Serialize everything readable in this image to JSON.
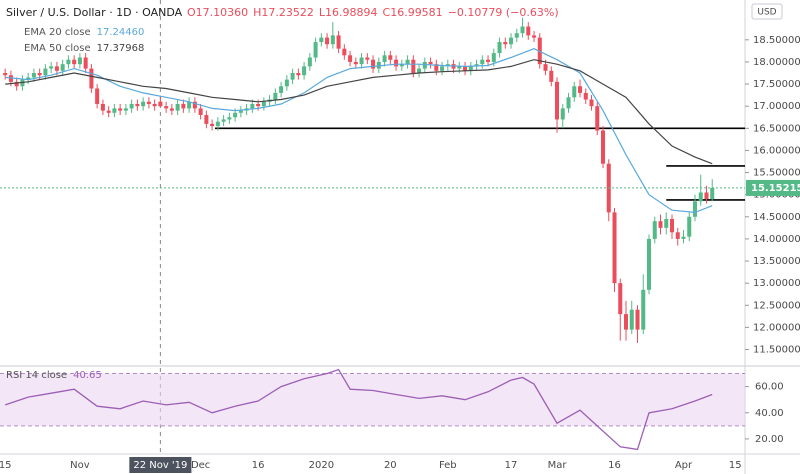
{
  "chart_data": {
    "type": "candlestick",
    "title": "Silver / U.S. Dollar · 1D · OANDA",
    "ohlc": [
      "O17.10360",
      "H17.23522",
      "L16.98894",
      "C16.99581"
    ],
    "change": "−0.10779 (−0.63%)",
    "currency": "USD",
    "up_color": "#53b987",
    "down_color": "#eb4d5c",
    "xlim": [
      -0.9,
      128.7
    ],
    "xticks": [
      {
        "value": 0,
        "label": "15"
      },
      {
        "value": 13,
        "label": "Nov"
      },
      {
        "value": 27,
        "label": "22 Nov '19"
      },
      {
        "value": 34,
        "label": "Dec"
      },
      {
        "value": 44,
        "label": "16"
      },
      {
        "value": 55,
        "label": "2020"
      },
      {
        "value": 67,
        "label": "20"
      },
      {
        "value": 77,
        "label": "Feb"
      },
      {
        "value": 88,
        "label": "17"
      },
      {
        "value": 96,
        "label": "Mar"
      },
      {
        "value": 106,
        "label": "16"
      },
      {
        "value": 118,
        "label": "Apr"
      },
      {
        "value": 127,
        "label": "15"
      }
    ],
    "crosshair": 27,
    "ylim": [
      11.15,
      19.4
    ],
    "yticks": [
      {
        "value": 11.5,
        "label": "11.50000"
      },
      {
        "value": 12,
        "label": "12.00000"
      },
      {
        "value": 12.5,
        "label": "12.50000"
      },
      {
        "value": 13,
        "label": "13.00000"
      },
      {
        "value": 13.5,
        "label": "13.50000"
      },
      {
        "value": 14,
        "label": "14.00000"
      },
      {
        "value": 14.5,
        "label": "14.50000"
      },
      {
        "value": 15,
        "label": "15.00000"
      },
      {
        "value": 15.5,
        "label": "15.50000"
      },
      {
        "value": 16,
        "label": "16.00000"
      },
      {
        "value": 16.5,
        "label": "16.50000"
      },
      {
        "value": 17,
        "label": "17.00000"
      },
      {
        "value": 17.5,
        "label": "17.50000"
      },
      {
        "value": 18,
        "label": "18.00000"
      },
      {
        "value": 18.5,
        "label": "18.50000"
      }
    ],
    "candles": [
      [
        17.75,
        17.85,
        17.6,
        17.7
      ],
      [
        17.7,
        17.8,
        17.45,
        17.55
      ],
      [
        17.55,
        17.65,
        17.35,
        17.45
      ],
      [
        17.45,
        17.7,
        17.35,
        17.6
      ],
      [
        17.6,
        17.75,
        17.5,
        17.65
      ],
      [
        17.65,
        17.85,
        17.55,
        17.75
      ],
      [
        17.75,
        17.85,
        17.6,
        17.7
      ],
      [
        17.7,
        17.95,
        17.6,
        17.85
      ],
      [
        17.85,
        18,
        17.75,
        17.9
      ],
      [
        17.9,
        18,
        17.7,
        17.8
      ],
      [
        17.8,
        18.05,
        17.7,
        17.95
      ],
      [
        17.95,
        18.15,
        17.85,
        18.05
      ],
      [
        18.05,
        18.15,
        17.85,
        17.95
      ],
      [
        17.95,
        18.2,
        17.85,
        18.1
      ],
      [
        18.1,
        18.2,
        17.75,
        17.85
      ],
      [
        17.85,
        17.95,
        17.3,
        17.4
      ],
      [
        17.4,
        17.5,
        16.95,
        17.05
      ],
      [
        17.05,
        17.15,
        16.8,
        16.9
      ],
      [
        16.9,
        17,
        16.75,
        16.85
      ],
      [
        16.85,
        17.05,
        16.75,
        16.95
      ],
      [
        16.95,
        17.05,
        16.8,
        16.9
      ],
      [
        16.9,
        17.05,
        16.8,
        16.95
      ],
      [
        16.95,
        17.15,
        16.85,
        17.05
      ],
      [
        17.05,
        17.15,
        16.9,
        17
      ],
      [
        17,
        17.2,
        16.9,
        17.1
      ],
      [
        17.1,
        17.2,
        16.95,
        17.05
      ],
      [
        17.05,
        17.15,
        16.9,
        17
      ],
      [
        17.1036,
        17.23522,
        16.98894,
        16.99581
      ],
      [
        17,
        17.1,
        16.85,
        16.95
      ],
      [
        16.95,
        17.05,
        16.8,
        16.9
      ],
      [
        16.9,
        17.15,
        16.8,
        17.05
      ],
      [
        17.05,
        17.15,
        16.85,
        16.95
      ],
      [
        16.95,
        17.2,
        16.85,
        17.1
      ],
      [
        17.1,
        17.2,
        16.85,
        16.95
      ],
      [
        16.95,
        17.05,
        16.7,
        16.8
      ],
      [
        16.8,
        16.9,
        16.5,
        16.6
      ],
      [
        16.6,
        16.7,
        16.45,
        16.55
      ],
      [
        16.55,
        16.75,
        16.45,
        16.65
      ],
      [
        16.65,
        16.8,
        16.55,
        16.7
      ],
      [
        16.7,
        16.85,
        16.6,
        16.75
      ],
      [
        16.75,
        16.95,
        16.65,
        16.85
      ],
      [
        16.85,
        17,
        16.75,
        16.9
      ],
      [
        16.9,
        17.05,
        16.8,
        16.95
      ],
      [
        16.95,
        17.15,
        16.85,
        17.05
      ],
      [
        17.05,
        17.15,
        16.9,
        17
      ],
      [
        17,
        17.2,
        16.9,
        17.1
      ],
      [
        17.1,
        17.25,
        17,
        17.15
      ],
      [
        17.15,
        17.4,
        17.05,
        17.3
      ],
      [
        17.3,
        17.55,
        17.2,
        17.45
      ],
      [
        17.45,
        17.7,
        17.35,
        17.6
      ],
      [
        17.6,
        17.85,
        17.5,
        17.75
      ],
      [
        17.75,
        17.85,
        17.6,
        17.7
      ],
      [
        17.7,
        18,
        17.6,
        17.9
      ],
      [
        17.9,
        18.2,
        17.8,
        18.1
      ],
      [
        18.1,
        18.55,
        18,
        18.45
      ],
      [
        18.45,
        18.65,
        18.35,
        18.55
      ],
      [
        18.55,
        18.65,
        18.3,
        18.4
      ],
      [
        18.4,
        18.9,
        18.3,
        18.6
      ],
      [
        18.6,
        18.7,
        18.2,
        18.3
      ],
      [
        18.3,
        18.4,
        18.05,
        18.15
      ],
      [
        18.15,
        18.25,
        17.9,
        18
      ],
      [
        18,
        18.1,
        17.85,
        17.95
      ],
      [
        17.95,
        18.2,
        17.85,
        18.1
      ],
      [
        18.1,
        18.2,
        17.95,
        18.05
      ],
      [
        18.05,
        18.15,
        17.75,
        17.85
      ],
      [
        17.85,
        18.1,
        17.75,
        18
      ],
      [
        18,
        18.25,
        17.9,
        18.15
      ],
      [
        18.15,
        18.25,
        17.95,
        18.05
      ],
      [
        18.05,
        18.15,
        17.8,
        17.9
      ],
      [
        17.9,
        18.05,
        17.8,
        17.95
      ],
      [
        17.95,
        18.15,
        17.85,
        18.05
      ],
      [
        18.05,
        18.15,
        17.65,
        17.75
      ],
      [
        17.75,
        17.95,
        17.65,
        17.85
      ],
      [
        17.85,
        18.1,
        17.75,
        18
      ],
      [
        18,
        18.1,
        17.85,
        17.95
      ],
      [
        17.95,
        18.05,
        17.7,
        17.8
      ],
      [
        17.8,
        18,
        17.7,
        17.9
      ],
      [
        17.9,
        18.05,
        17.8,
        17.95
      ],
      [
        17.95,
        18.05,
        17.75,
        17.85
      ],
      [
        17.85,
        18,
        17.75,
        17.9
      ],
      [
        17.9,
        18,
        17.7,
        17.8
      ],
      [
        17.8,
        18,
        17.7,
        17.9
      ],
      [
        17.9,
        18.05,
        17.8,
        17.95
      ],
      [
        17.95,
        18.15,
        17.85,
        18.05
      ],
      [
        18.05,
        18.15,
        17.9,
        18
      ],
      [
        18,
        18.3,
        17.9,
        18.2
      ],
      [
        18.2,
        18.55,
        18.1,
        18.45
      ],
      [
        18.45,
        18.55,
        18.3,
        18.4
      ],
      [
        18.4,
        18.65,
        18.3,
        18.55
      ],
      [
        18.55,
        18.75,
        18.45,
        18.65
      ],
      [
        18.65,
        19,
        18.55,
        18.8
      ],
      [
        18.8,
        18.9,
        18.5,
        18.6
      ],
      [
        18.6,
        18.7,
        18.45,
        18.55
      ],
      [
        18.55,
        18.65,
        17.85,
        17.95
      ],
      [
        17.95,
        18.05,
        17.7,
        17.8
      ],
      [
        17.8,
        17.9,
        17.45,
        17.55
      ],
      [
        17.55,
        17.65,
        16.4,
        16.7
      ],
      [
        16.7,
        17.05,
        16.5,
        16.95
      ],
      [
        16.95,
        17.3,
        16.85,
        17.2
      ],
      [
        17.2,
        17.55,
        17.1,
        17.45
      ],
      [
        17.45,
        17.6,
        17.2,
        17.3
      ],
      [
        17.3,
        17.4,
        17.05,
        17.15
      ],
      [
        17.15,
        17.25,
        16.9,
        17
      ],
      [
        17,
        17.1,
        16.35,
        16.45
      ],
      [
        16.45,
        16.55,
        15.6,
        15.7
      ],
      [
        15.7,
        15.8,
        14.4,
        14.6
      ],
      [
        14.6,
        14.7,
        12.8,
        13
      ],
      [
        13,
        13.1,
        11.7,
        12.3
      ],
      [
        12.3,
        12.6,
        11.7,
        11.95
      ],
      [
        11.95,
        12.6,
        11.85,
        12.4
      ],
      [
        12.4,
        12.5,
        11.65,
        11.95
      ],
      [
        11.95,
        13.2,
        11.85,
        12.85
      ],
      [
        12.85,
        14.1,
        12.75,
        14
      ],
      [
        14,
        14.5,
        13.9,
        14.4
      ],
      [
        14.4,
        14.55,
        14.1,
        14.25
      ],
      [
        14.25,
        14.6,
        14.1,
        14.45
      ],
      [
        14.45,
        14.55,
        14,
        14.15
      ],
      [
        14.15,
        14.25,
        13.85,
        14
      ],
      [
        14,
        14.2,
        13.9,
        14.05
      ],
      [
        14.05,
        14.6,
        13.95,
        14.5
      ],
      [
        14.5,
        15,
        14.4,
        14.85
      ],
      [
        14.85,
        15.45,
        14.75,
        15.05
      ],
      [
        15.05,
        15.2,
        14.8,
        14.9
      ],
      [
        14.9,
        15.35,
        14.85,
        15.15215
      ]
    ],
    "last_price_label": "15.15215",
    "lines": [
      {
        "name": "EMA 20 close",
        "value_label": "17.24460",
        "color": "#5aa9dc",
        "x": [
          0,
          4,
          8,
          12,
          16,
          20,
          24,
          28,
          32,
          36,
          40,
          44,
          48,
          52,
          56,
          60,
          64,
          68,
          72,
          76,
          80,
          84,
          88,
          92,
          96,
          100,
          104,
          108,
          112,
          116,
          120,
          123
        ],
        "values": [
          17.65,
          17.6,
          17.7,
          17.85,
          17.7,
          17.45,
          17.3,
          17.2,
          17.1,
          16.95,
          16.9,
          16.95,
          17.05,
          17.3,
          17.65,
          17.85,
          17.9,
          17.95,
          17.95,
          17.92,
          17.9,
          17.92,
          18.1,
          18.3,
          18.05,
          17.75,
          16.9,
          15.9,
          15,
          14.65,
          14.6,
          14.75
        ]
      },
      {
        "name": "EMA 50 close",
        "value_label": "17.37968",
        "color": "#444444",
        "x": [
          0,
          4,
          8,
          12,
          16,
          20,
          24,
          28,
          32,
          36,
          40,
          44,
          48,
          52,
          56,
          60,
          64,
          68,
          72,
          76,
          80,
          84,
          88,
          92,
          96,
          100,
          104,
          108,
          112,
          116,
          120,
          123
        ],
        "values": [
          17.5,
          17.55,
          17.65,
          17.75,
          17.65,
          17.55,
          17.45,
          17.4,
          17.3,
          17.2,
          17.15,
          17.1,
          17.15,
          17.25,
          17.45,
          17.55,
          17.65,
          17.7,
          17.75,
          17.78,
          17.8,
          17.82,
          17.9,
          18.05,
          17.95,
          17.8,
          17.5,
          17.2,
          16.6,
          16.1,
          15.85,
          15.7
        ]
      }
    ],
    "levels": [
      {
        "value": 16.5,
        "start": 36.5
      },
      {
        "value": 15.65,
        "start": 115
      },
      {
        "value": 14.88,
        "start": 115
      }
    ],
    "rsi": {
      "name": "RSI 14 close",
      "value_label": "40.65",
      "color": "#9c5fb5",
      "band_color": "#e9d6f2",
      "ylim": [
        10,
        75
      ],
      "yticks": [
        {
          "value": 20,
          "label": "20.00"
        },
        {
          "value": 40,
          "label": "40.00"
        },
        {
          "value": 60,
          "label": "60.00"
        }
      ],
      "band": [
        30,
        70
      ],
      "x": [
        0,
        4,
        8,
        12,
        16,
        20,
        24,
        28,
        32,
        36,
        40,
        44,
        48,
        52,
        56,
        58,
        60,
        64,
        68,
        72,
        76,
        80,
        84,
        88,
        90,
        92,
        96,
        100,
        104,
        107,
        110,
        112,
        116,
        120,
        123
      ],
      "values": [
        46,
        52,
        55,
        58,
        45,
        43,
        49,
        46,
        48,
        40,
        45,
        49,
        60,
        66,
        70,
        73,
        58,
        57,
        54,
        51,
        53,
        50,
        56,
        65,
        67,
        62,
        32,
        42,
        26,
        14,
        12,
        40,
        43,
        49,
        54
      ]
    }
  }
}
